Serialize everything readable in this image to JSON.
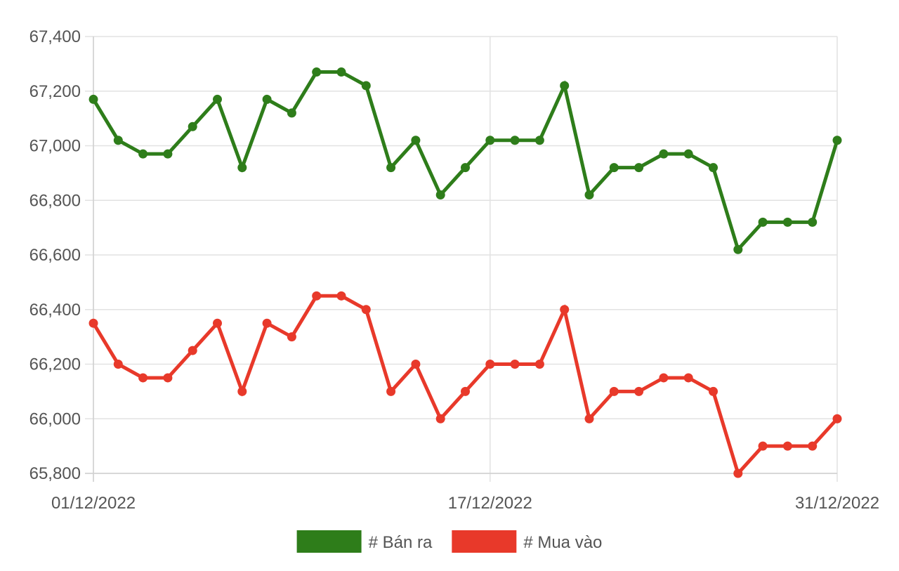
{
  "chart_data": {
    "type": "line",
    "title": "",
    "xlabel": "",
    "ylabel": "",
    "ylim": [
      65800,
      67400
    ],
    "y_ticks": [
      65800,
      66000,
      66200,
      66400,
      66600,
      66800,
      67000,
      67200,
      67400
    ],
    "y_tick_labels": [
      "65,800",
      "66,000",
      "66,200",
      "66,400",
      "66,600",
      "66,800",
      "67,000",
      "67,200",
      "67,400"
    ],
    "x_tick_labels": [
      {
        "label": "01/12/2022",
        "index": 0
      },
      {
        "label": "17/12/2022",
        "index": 16
      },
      {
        "label": "31/12/2022",
        "index": 30
      }
    ],
    "grid": true,
    "legend_position": "bottom",
    "series": [
      {
        "name": "# Bán ra",
        "color": "#2e7d1a",
        "values": [
          67170,
          67020,
          66970,
          66970,
          67070,
          67170,
          66920,
          67170,
          67120,
          67270,
          67270,
          67220,
          66920,
          67020,
          66820,
          66920,
          67020,
          67020,
          67020,
          67220,
          66820,
          66920,
          66920,
          66970,
          66970,
          66920,
          66620,
          66720,
          66720,
          66720,
          67020
        ]
      },
      {
        "name": "# Mua vào",
        "color": "#e8392a",
        "values": [
          66350,
          66200,
          66150,
          66150,
          66250,
          66350,
          66100,
          66350,
          66300,
          66450,
          66450,
          66400,
          66100,
          66200,
          66000,
          66100,
          66200,
          66200,
          66200,
          66400,
          66000,
          66100,
          66100,
          66150,
          66150,
          66100,
          65800,
          65900,
          65900,
          65900,
          66000
        ]
      }
    ]
  }
}
